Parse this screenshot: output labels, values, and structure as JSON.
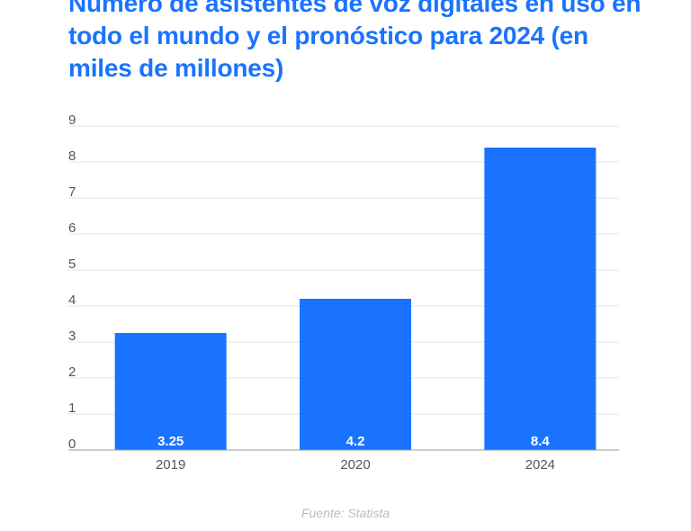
{
  "chart_data": {
    "type": "bar",
    "title": "Número de asistentes de voz digitales en uso en todo el mundo y el pronóstico para 2024 (en miles de millones)",
    "categories": [
      "2019",
      "2020",
      "2024"
    ],
    "values": [
      3.25,
      4.2,
      8.4
    ],
    "value_labels": [
      "3.25",
      "4.2",
      "8.4"
    ],
    "y_ticks": [
      0,
      1,
      2,
      3,
      4,
      5,
      6,
      7,
      8,
      9
    ],
    "ylim": [
      0,
      9
    ],
    "xlabel": "",
    "ylabel": "",
    "grid": true,
    "bar_color": "#1a73ff",
    "source": "Fuente: Statista"
  }
}
